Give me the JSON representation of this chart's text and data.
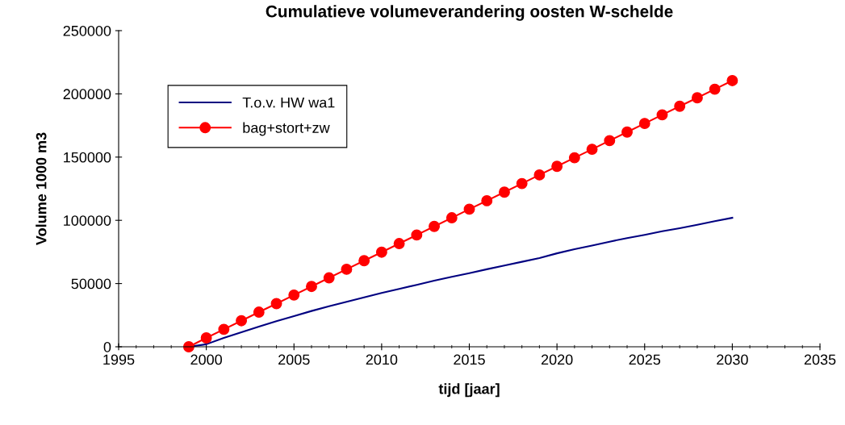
{
  "chart_data": {
    "type": "line",
    "title": "Cumulatieve volumeverandering oosten W-schelde",
    "xlabel": "tijd [jaar]",
    "ylabel": "Volume 1000 m3",
    "x": [
      1999,
      2000,
      2001,
      2002,
      2003,
      2004,
      2005,
      2006,
      2007,
      2008,
      2009,
      2010,
      2011,
      2012,
      2013,
      2014,
      2015,
      2016,
      2017,
      2018,
      2019,
      2020,
      2021,
      2022,
      2023,
      2024,
      2025,
      2026,
      2027,
      2028,
      2029,
      2030
    ],
    "series": [
      {
        "name": "T.o.v. HW wa1",
        "color": "#000080",
        "marker": "none",
        "values": [
          0,
          2000,
          7000,
          11500,
          16000,
          20300,
          24300,
          28300,
          32000,
          35500,
          39000,
          42500,
          45800,
          49000,
          52300,
          55300,
          58200,
          61300,
          64200,
          67200,
          70200,
          73900,
          77200,
          80000,
          83100,
          86000,
          88500,
          91300,
          93800,
          96500,
          99300,
          102000
        ]
      },
      {
        "name": "bag+stort+zw",
        "color": "#ff0000",
        "marker": "circle",
        "values": [
          0,
          7000,
          13800,
          20600,
          27400,
          34100,
          40900,
          47700,
          54500,
          61300,
          68100,
          74800,
          81600,
          88400,
          95200,
          102000,
          108800,
          115500,
          122300,
          129100,
          135900,
          142700,
          149500,
          156200,
          163000,
          169800,
          176600,
          183400,
          190200,
          196900,
          203700,
          210500
        ]
      }
    ],
    "xlim": [
      1995,
      2035
    ],
    "xticks": [
      1995,
      2000,
      2005,
      2010,
      2015,
      2020,
      2025,
      2030,
      2035
    ],
    "ylim": [
      0,
      250000
    ],
    "yticks": [
      0,
      50000,
      100000,
      150000,
      200000,
      250000
    ],
    "grid": false,
    "legend": "top left",
    "line_style": "solid"
  }
}
